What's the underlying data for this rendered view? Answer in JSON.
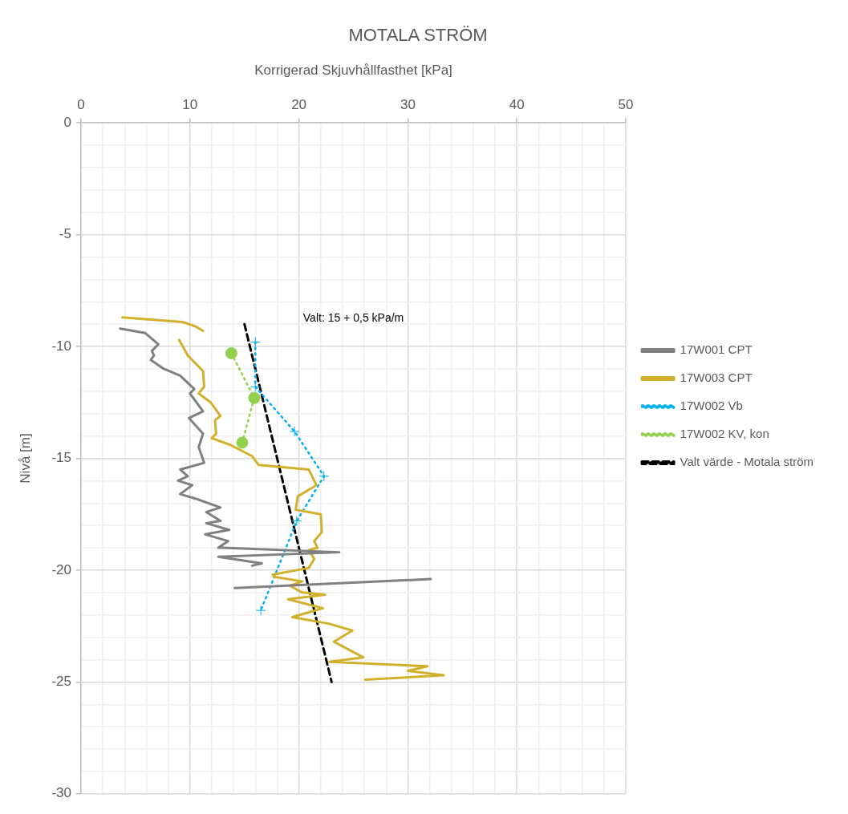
{
  "chart_data": {
    "type": "line",
    "title": "MOTALA STRÖM",
    "xlabel": "Korrigerad Skjuvhållfasthet [kPa]",
    "ylabel": "Nivå [m]",
    "xlim": [
      0,
      50
    ],
    "ylim": [
      -30,
      0
    ],
    "xticks": [
      0,
      {
        "value": 2,
        "label": null
      },
      {
        "value": 4,
        "label": null
      },
      {
        "value": 6,
        "label": null
      },
      {
        "value": 8,
        "label": null
      },
      10,
      {
        "value": 12,
        "label": null
      },
      {
        "value": 14,
        "label": null
      },
      {
        "value": 16,
        "label": null
      },
      {
        "value": 18,
        "label": null
      },
      20,
      {
        "value": 22,
        "label": null
      },
      {
        "value": 24,
        "label": null
      },
      {
        "value": 26,
        "label": null
      },
      {
        "value": 28,
        "label": null
      },
      30,
      {
        "value": 32,
        "label": null
      },
      {
        "value": 34,
        "label": null
      },
      {
        "value": 36,
        "label": null
      },
      {
        "value": 38,
        "label": null
      },
      40,
      {
        "value": 42,
        "label": null
      },
      {
        "value": 44,
        "label": null
      },
      {
        "value": 46,
        "label": null
      },
      {
        "value": 48,
        "label": null
      },
      50
    ],
    "yticks": [
      0,
      {
        "value": -1,
        "label": null
      },
      {
        "value": -2,
        "label": null
      },
      {
        "value": -3,
        "label": null
      },
      {
        "value": -4,
        "label": null
      },
      -5,
      {
        "value": -6,
        "label": null
      },
      {
        "value": -7,
        "label": null
      },
      {
        "value": -8,
        "label": null
      },
      {
        "value": -9,
        "label": null
      },
      -10,
      {
        "value": -11,
        "label": null
      },
      {
        "value": -12,
        "label": null
      },
      {
        "value": -13,
        "label": null
      },
      {
        "value": -14,
        "label": null
      },
      -15,
      {
        "value": -16,
        "label": null
      },
      {
        "value": -17,
        "label": null
      },
      {
        "value": -18,
        "label": null
      },
      {
        "value": -19,
        "label": null
      },
      -20,
      {
        "value": -21,
        "label": null
      },
      {
        "value": -22,
        "label": null
      },
      {
        "value": -23,
        "label": null
      },
      {
        "value": -24,
        "label": null
      },
      -25,
      {
        "value": -26,
        "label": null
      },
      {
        "value": -27,
        "label": null
      },
      {
        "value": -28,
        "label": null
      },
      {
        "value": -29,
        "label": null
      },
      -30
    ],
    "grid": true,
    "legend": "right",
    "annotations": [
      "Valt: 15 + 0,5 kPa/m"
    ],
    "series": [
      {
        "name": "17W001 CPT",
        "color": "#808080",
        "line_style": "solid",
        "marker": "none",
        "x": [
          3.6,
          5.9,
          7.1,
          6.5,
          6.7,
          6.4,
          7.6,
          9.1,
          10.4,
          10.0,
          11.2,
          9.9,
          11.2,
          10.8,
          11.3,
          9.1,
          9.8,
          8.9,
          10.2,
          9.1,
          10.5,
          12.8,
          11.5,
          12.8,
          11.5,
          13.6,
          11.4,
          13.5,
          12.6,
          13.0,
          23.7,
          12.6,
          16.6,
          15.7,
          20,
          32.1,
          14.1
        ],
        "values": [
          -9.2,
          -9.4,
          -9.9,
          -10.2,
          -10.4,
          -10.6,
          -11.0,
          -11.3,
          -11.9,
          -12.1,
          -12.9,
          -13.2,
          -13.9,
          -14.5,
          -15.2,
          -15.5,
          -15.8,
          -16.0,
          -16.2,
          -16.6,
          -16.8,
          -17.2,
          -17.4,
          -17.8,
          -17.9,
          -18.2,
          -18.4,
          -18.7,
          -19.0,
          -19.0,
          -19.2,
          -19.4,
          -19.7,
          -19.8,
          null,
          -20.4,
          -20.8
        ]
      },
      {
        "name": "17W003 CPT",
        "color": "#d1b02c",
        "line_style": "solid",
        "marker": "none",
        "x": [
          3.8,
          9.3,
          10.5,
          11.2,
          10,
          9.0,
          9.8,
          11.2,
          11.3,
          10.8,
          11.9,
          12.8,
          12.3,
          12.4,
          12.0,
          13.7,
          15.7,
          16.3,
          20.9,
          21.6,
          19.9,
          19.7,
          22.0,
          22.1,
          21.4,
          21.7,
          20.9,
          21.4,
          20.9,
          17.6,
          17.7,
          20.3,
          19.2,
          20.3,
          22.4,
          19.0,
          22.2,
          19.4,
          22.8,
          24.9,
          23.2,
          25.9,
          22.8,
          31.8,
          30.0,
          33.3,
          26.1
        ],
        "values": [
          -8.7,
          -8.9,
          -9.1,
          -9.3,
          null,
          -9.7,
          -10.4,
          -11.1,
          -11.8,
          -12.1,
          -12.5,
          -13.1,
          -13.3,
          -13.9,
          -14.1,
          -14.4,
          -14.9,
          -15.3,
          -15.5,
          -16.2,
          -16.7,
          -17.3,
          -17.5,
          -18.3,
          -18.7,
          -19.0,
          -19.1,
          -19.5,
          -19.9,
          -20.2,
          -20.3,
          -20.5,
          -20.7,
          -21.0,
          -21.1,
          -21.3,
          -21.7,
          -22.1,
          -22.4,
          -22.7,
          -23.2,
          -23.9,
          -24.1,
          -24.3,
          -24.5,
          -24.7,
          -24.9
        ]
      },
      {
        "name": "17W002 Vb",
        "color": "#00b0f0",
        "line_style": "dotted",
        "marker": "cross",
        "x": [
          16.0,
          16.0,
          19.6,
          22.3,
          19.8,
          16.5
        ],
        "values": [
          -9.8,
          -11.8,
          -13.8,
          -15.8,
          -17.8,
          -21.8
        ]
      },
      {
        "name": "17W002 KV, kon",
        "color": "#92d050",
        "line_style": "dotted",
        "marker": "circle",
        "x": [
          13.8,
          15.9,
          14.8
        ],
        "values": [
          -10.3,
          -12.3,
          -14.3
        ]
      },
      {
        "name": "Valt värde - Motala ström",
        "color": "#000000",
        "line_style": "dashed",
        "marker": "none",
        "x": [
          15,
          23
        ],
        "values": [
          -9,
          -25
        ]
      }
    ]
  }
}
